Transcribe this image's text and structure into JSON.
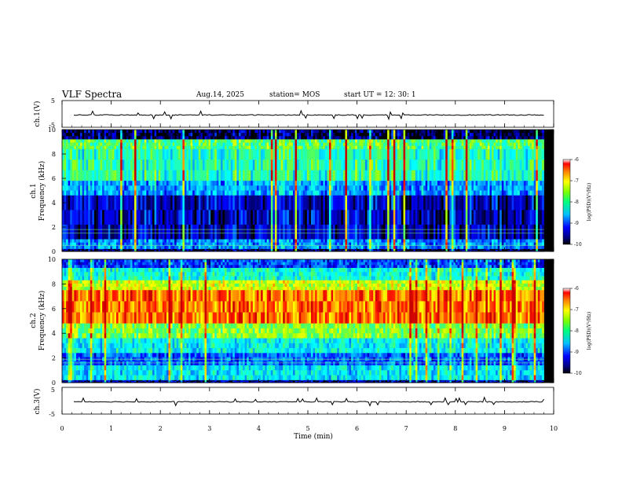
{
  "header": {
    "title": "VLF Spectra",
    "date": "Aug.14, 2025",
    "station": "station= MOS",
    "start": "start  UT  =   12: 30: 1"
  },
  "chart_data": [
    {
      "type": "line",
      "name": "ch1-waveform",
      "ylabel": "ch.1(V)",
      "ylim": [
        -5,
        5
      ],
      "y_ticks": [
        "5",
        "-5"
      ],
      "values_note": "flat trace near 0 V with sparse small spikes"
    },
    {
      "type": "heatmap",
      "name": "ch1-spectrogram",
      "ylabel_top": "ch.1",
      "ylabel": "Frequency (kHz)",
      "ylim": [
        0,
        10
      ],
      "y_ticks": [
        "0",
        "2",
        "4",
        "6",
        "8",
        "10"
      ],
      "colorbar": {
        "label": "log(PSD)(V²/Hz)",
        "range": [
          -10,
          -6
        ],
        "ticks": [
          "-6",
          "-7",
          "-8",
          "-9",
          "-10"
        ]
      },
      "band_levels_top_to_bottom": [
        {
          "from_khz": 10,
          "to_khz": 9.2,
          "level": 0.05
        },
        {
          "from_khz": 9.2,
          "to_khz": 8.4,
          "level": 0.55
        },
        {
          "from_khz": 8.4,
          "to_khz": 5.8,
          "level": 0.48
        },
        {
          "from_khz": 5.8,
          "to_khz": 4.6,
          "level": 0.32
        },
        {
          "from_khz": 4.6,
          "to_khz": 1.0,
          "level": 0.12
        },
        {
          "from_khz": 1.0,
          "to_khz": 0.2,
          "level": 0.3
        },
        {
          "from_khz": 0.2,
          "to_khz": 0,
          "level": 0.05
        }
      ],
      "lines_khz": [
        0.5,
        1.5,
        1.8
      ]
    },
    {
      "type": "heatmap",
      "name": "ch2-spectrogram",
      "ylabel_top": "ch.2",
      "ylabel": "Frequency (kHz)",
      "ylim": [
        0,
        10
      ],
      "y_ticks": [
        "0",
        "2",
        "4",
        "6",
        "8",
        "10"
      ],
      "colorbar": {
        "label": "log(PSD)(V²/Hz)",
        "range": [
          -10,
          -6
        ],
        "ticks": [
          "-6",
          "-7",
          "-8",
          "-9",
          "-10"
        ]
      },
      "band_levels_top_to_bottom": [
        {
          "from_khz": 10,
          "to_khz": 9.3,
          "level": 0.22
        },
        {
          "from_khz": 9.3,
          "to_khz": 8.3,
          "level": 0.45
        },
        {
          "from_khz": 8.3,
          "to_khz": 7.5,
          "level": 0.68
        },
        {
          "from_khz": 7.5,
          "to_khz": 4.8,
          "level": 0.86
        },
        {
          "from_khz": 4.8,
          "to_khz": 3.6,
          "level": 0.6
        },
        {
          "from_khz": 3.6,
          "to_khz": 2.4,
          "level": 0.42
        },
        {
          "from_khz": 2.4,
          "to_khz": 1.4,
          "level": 0.25
        },
        {
          "from_khz": 1.4,
          "to_khz": 0.2,
          "level": 0.4
        },
        {
          "from_khz": 0.2,
          "to_khz": 0,
          "level": 0.1
        }
      ],
      "lines_khz": [
        1.6,
        1.9
      ]
    },
    {
      "type": "line",
      "name": "ch3-waveform",
      "ylabel": "ch.3(V)",
      "ylim": [
        -5,
        5
      ],
      "y_ticks": [
        "5",
        "-5"
      ],
      "values_note": "flat trace near 0 V with sparse small spikes"
    }
  ],
  "x_axis": {
    "label": "Time (min)",
    "range": [
      0,
      10
    ],
    "ticks": [
      "0",
      "1",
      "2",
      "3",
      "4",
      "5",
      "6",
      "7",
      "8",
      "9",
      "10"
    ],
    "data_end_min": 9.8
  },
  "colors": {
    "jet": [
      "#000000",
      "#00007f",
      "#0000ff",
      "#007fff",
      "#00ffff",
      "#7fff7f",
      "#ffff00",
      "#ff7f00",
      "#ff0000",
      "#7f0000"
    ]
  }
}
